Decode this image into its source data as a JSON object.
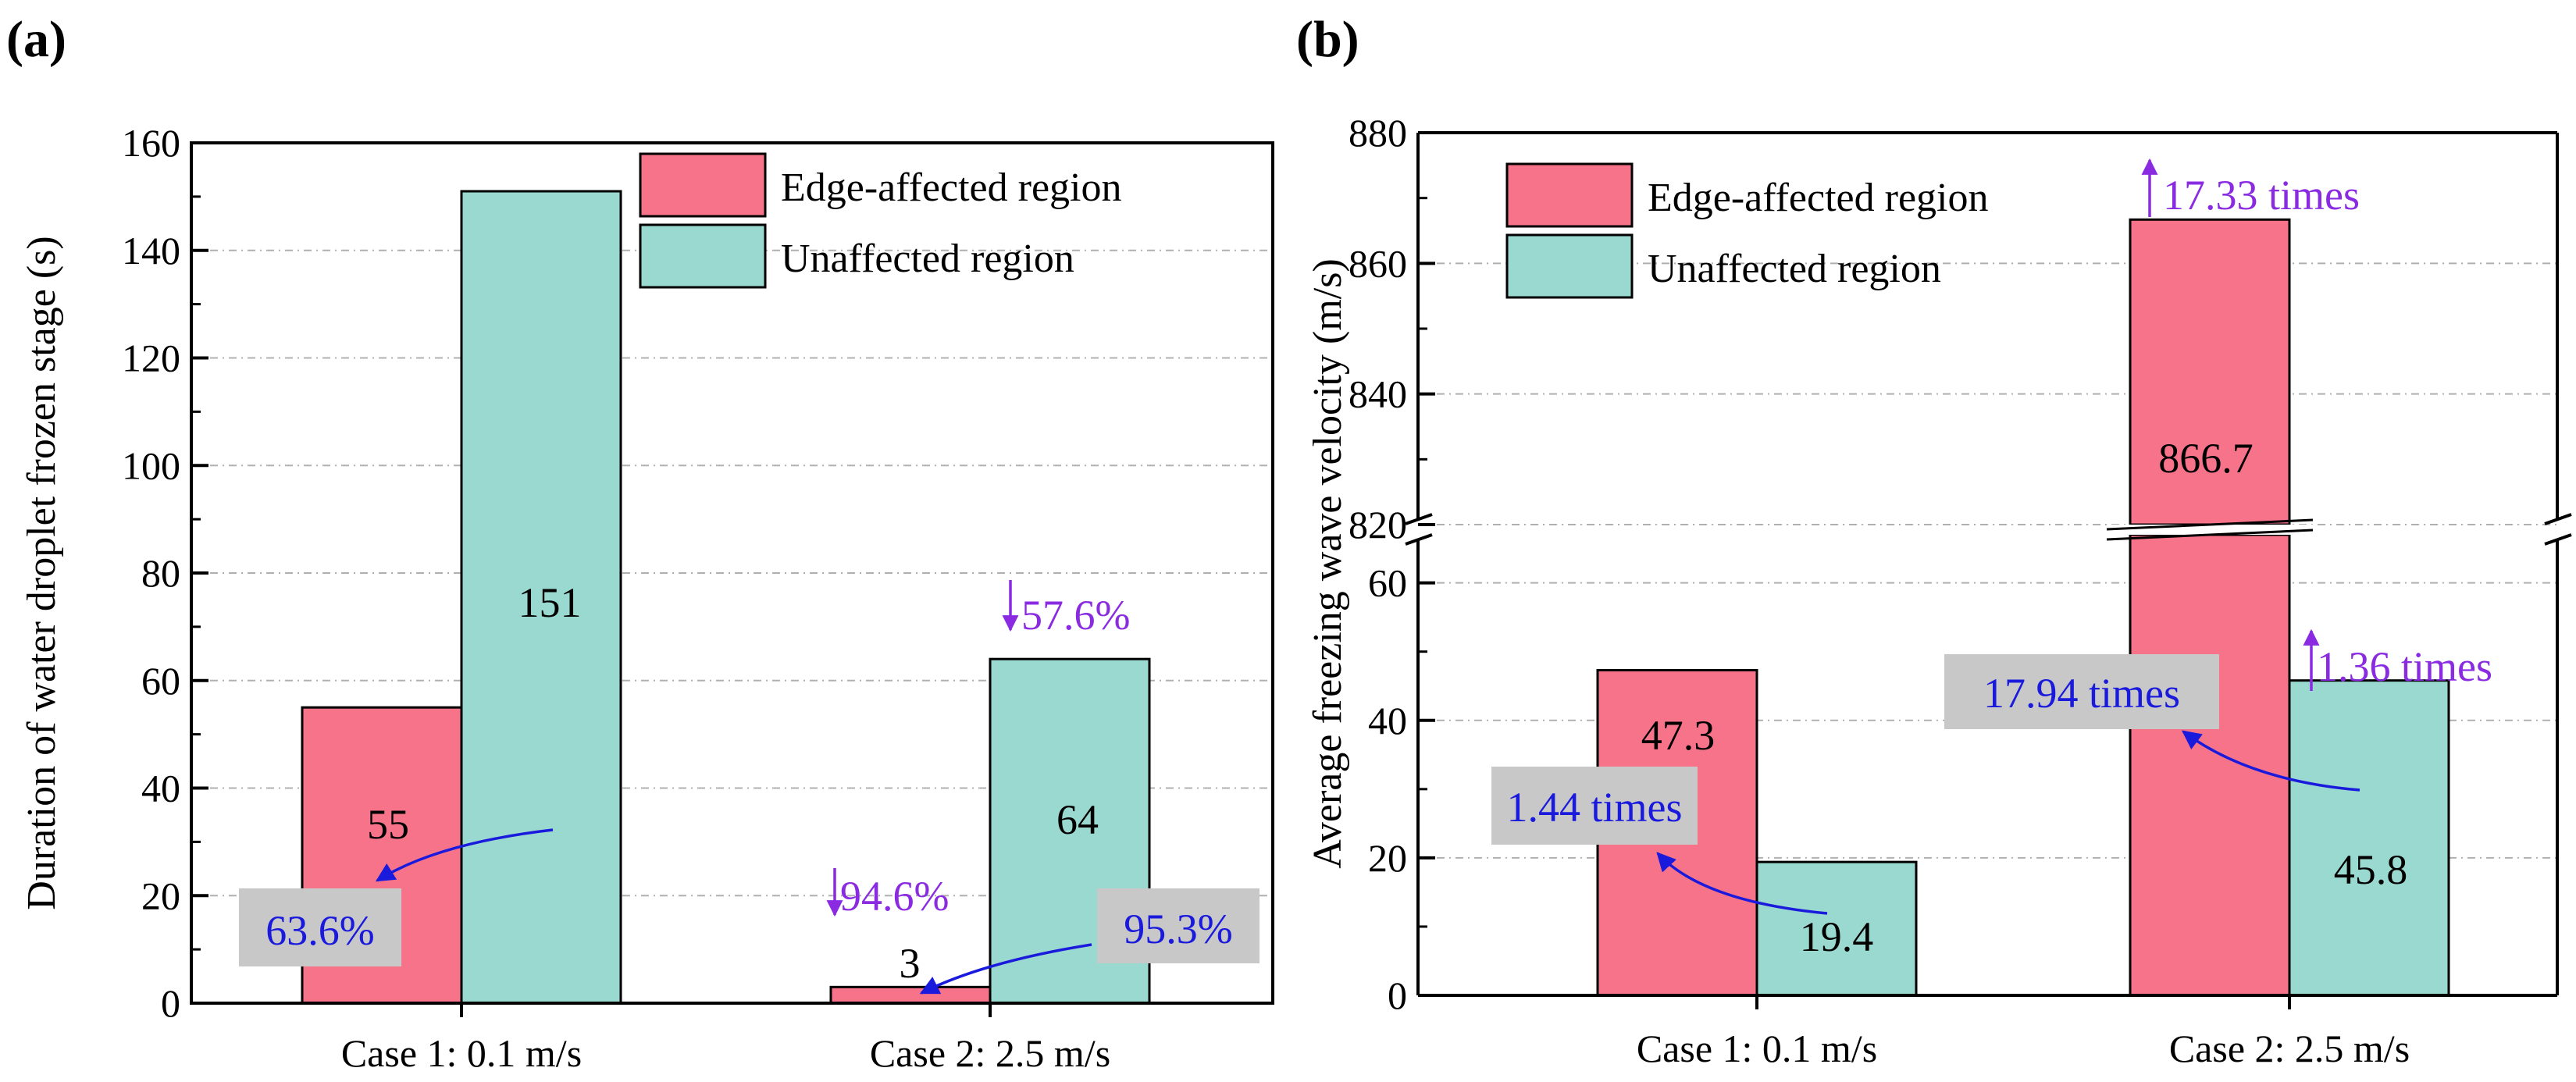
{
  "colors": {
    "edge": "#f7738a",
    "unaffected": "#9ad9d0",
    "annotation_purple": "#8a2be2",
    "annotation_blue": "#1a1adc",
    "callout_box": "#c8c8c8",
    "grid": "#b0b0b0"
  },
  "chart_data": [
    {
      "panel": "(a)",
      "type": "bar",
      "ylabel": "Duration of water droplet frozen stage (s)",
      "categories": [
        "Case 1: 0.1 m/s",
        "Case 2: 2.5 m/s"
      ],
      "ylim": [
        0,
        160
      ],
      "yticks": [
        "0",
        "20",
        "40",
        "60",
        "80",
        "100",
        "120",
        "140",
        "160"
      ],
      "grid": true,
      "legend_position": "top-right",
      "series": [
        {
          "name": "Edge-affected region",
          "values": [
            55,
            3
          ],
          "labels": [
            "55",
            "3"
          ]
        },
        {
          "name": "Unaffected region",
          "values": [
            151,
            64
          ],
          "labels": [
            "151",
            "64"
          ]
        }
      ],
      "annotations": {
        "decrease_case1_callout": "63.6%",
        "decrease_case2_callout": "95.3%",
        "decrease_edge_case2": "94.6%",
        "decrease_unaffected_case2": "57.6%"
      }
    },
    {
      "panel": "(b)",
      "type": "bar",
      "ylabel": "Average freezing wave velocity (m/s)",
      "categories": [
        "Case 1: 0.1 m/s",
        "Case 2: 2.5 m/s"
      ],
      "axis_break": true,
      "ylim_lower": [
        0,
        67
      ],
      "ylim_upper": [
        820,
        880
      ],
      "yticks_lower": [
        "0",
        "20",
        "40",
        "60"
      ],
      "yticks_upper": [
        "820",
        "840",
        "860",
        "880"
      ],
      "grid": true,
      "legend_position": "top-left",
      "series": [
        {
          "name": "Edge-affected region",
          "values": [
            47.3,
            866.7
          ],
          "labels": [
            "47.3",
            "866.7"
          ]
        },
        {
          "name": "Unaffected region",
          "values": [
            19.4,
            45.8
          ],
          "labels": [
            "19.4",
            "45.8"
          ]
        }
      ],
      "annotations": {
        "ratio_case1_callout": "1.44 times",
        "ratio_case2_callout": "17.94 times",
        "increase_edge": "17.33 times",
        "increase_unaffected": "1.36 times"
      }
    }
  ]
}
